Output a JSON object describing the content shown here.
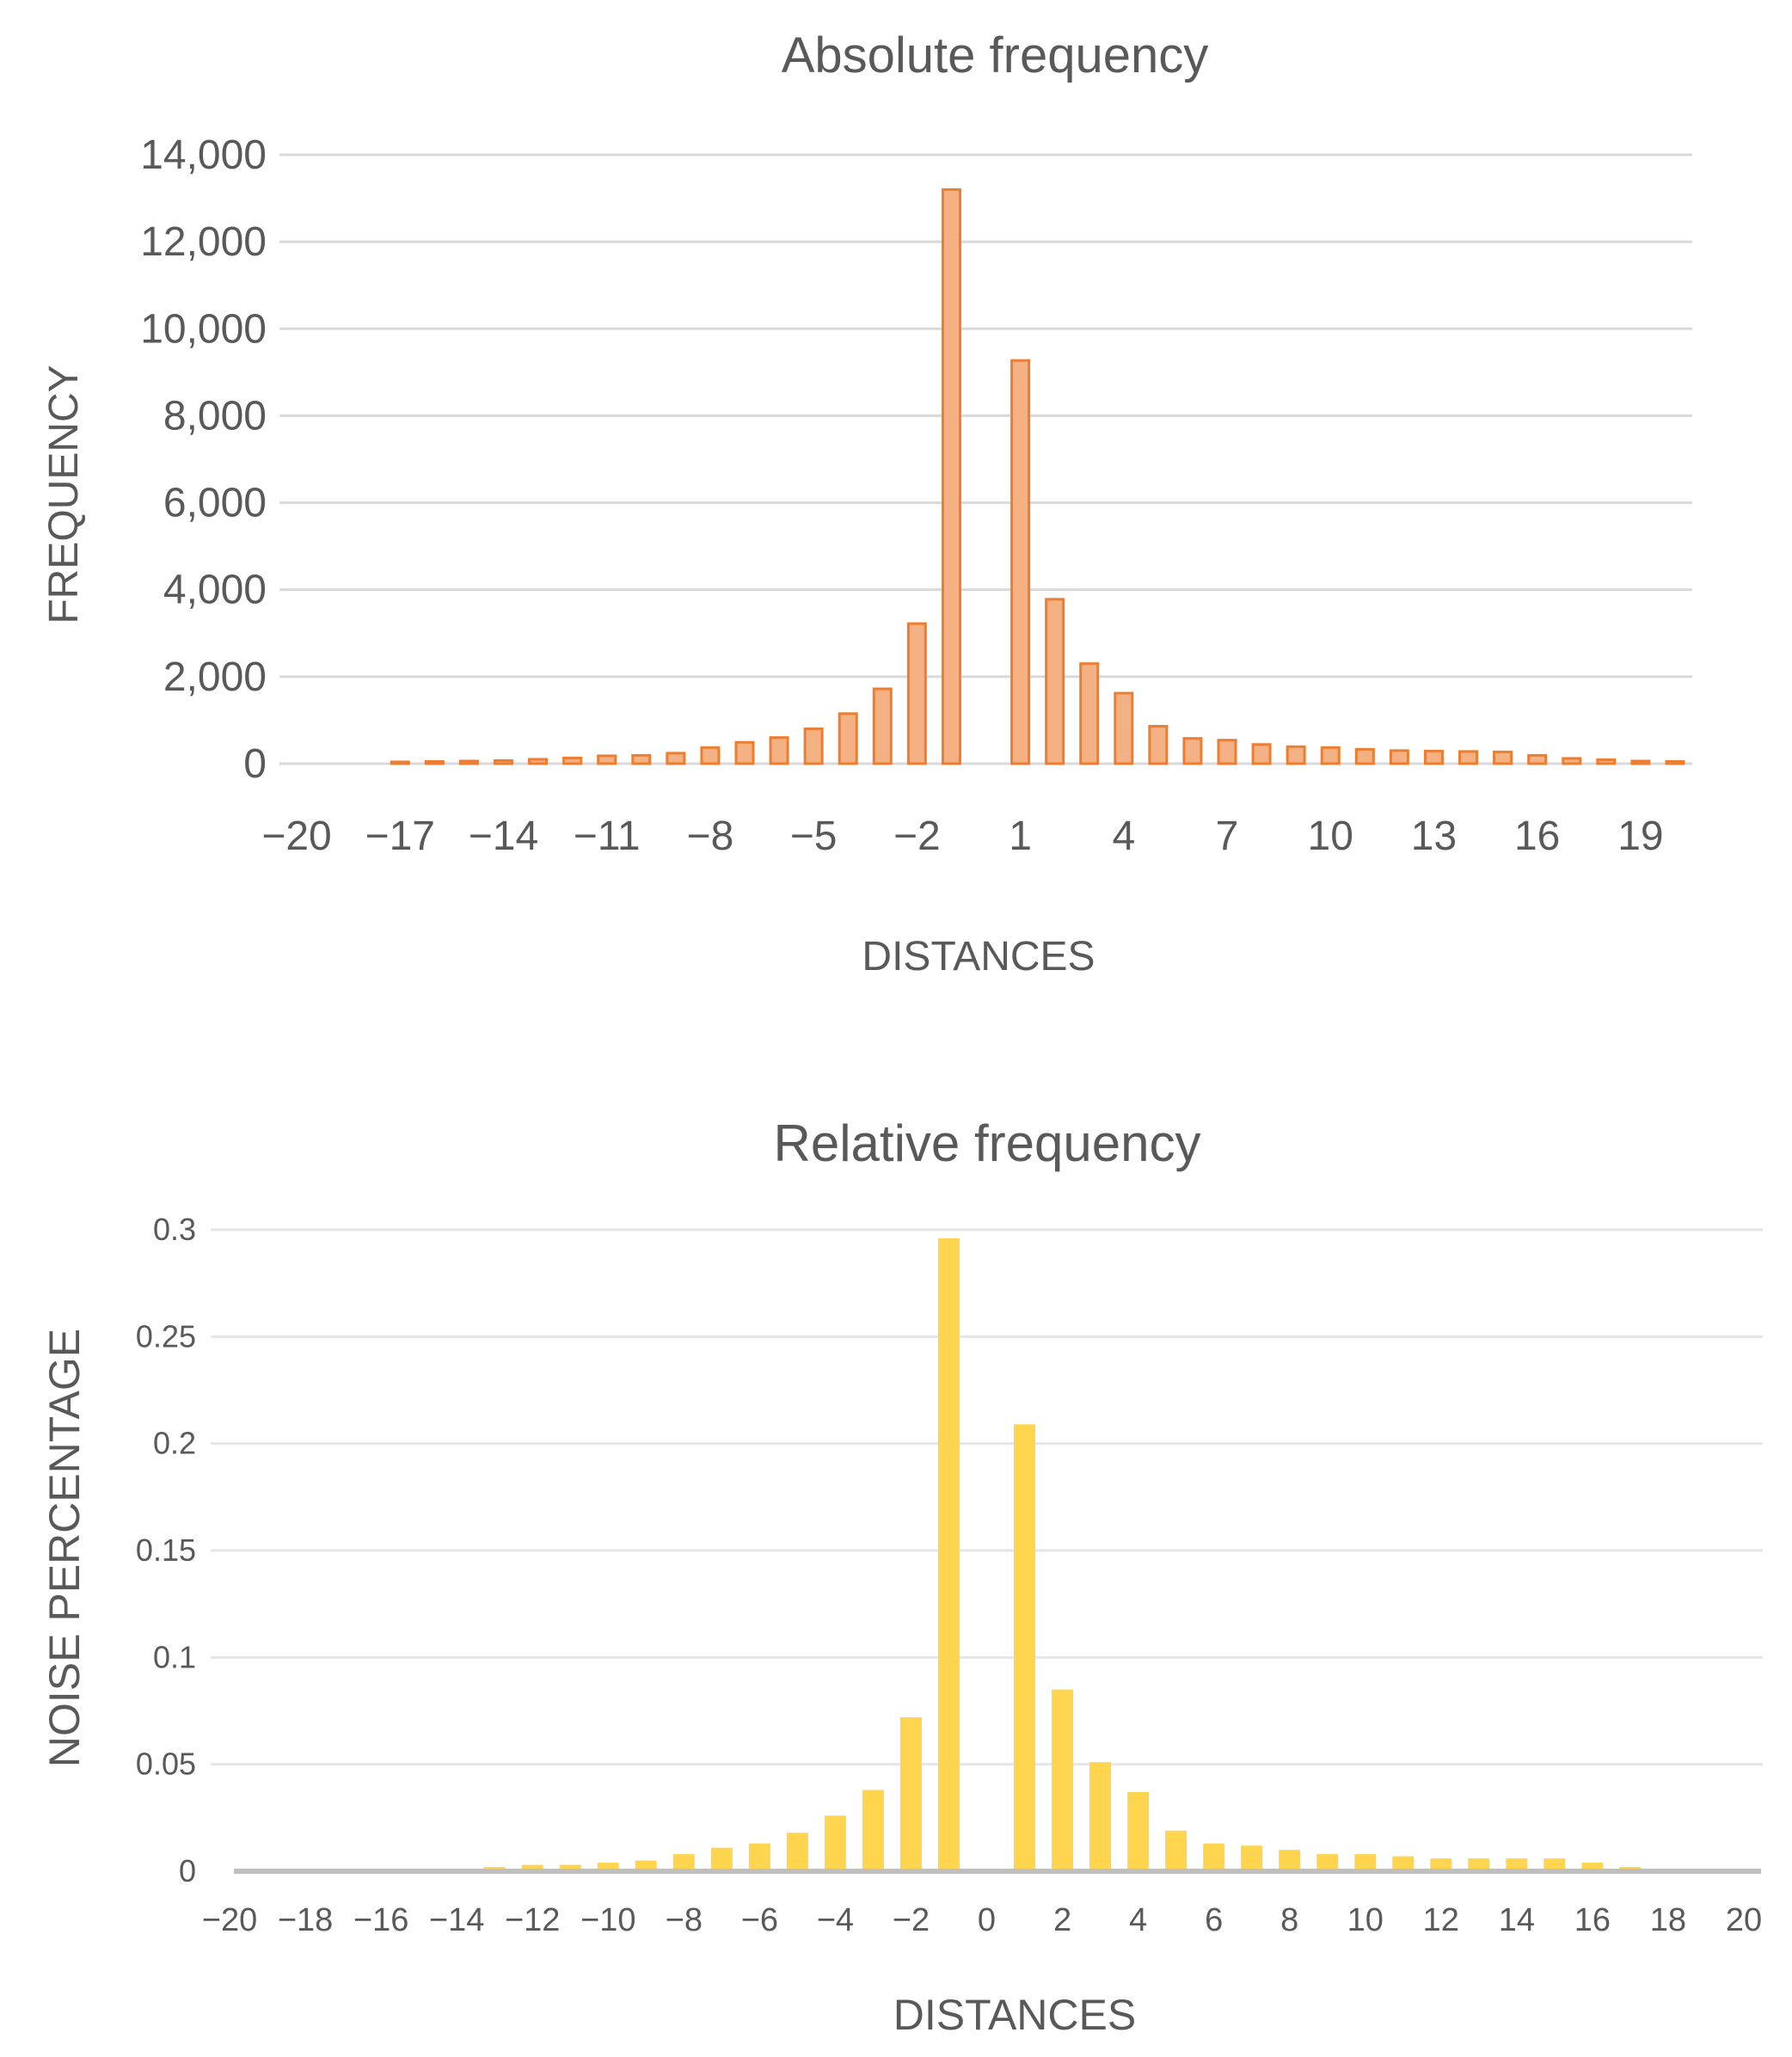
{
  "chart_data": [
    {
      "type": "bar",
      "title": "Absolute frequency",
      "xlabel": "DISTANCES",
      "ylabel": "FREQUENCY",
      "ylim": [
        0,
        14000
      ],
      "yticks": [
        "0",
        "2,000",
        "4,000",
        "6,000",
        "8,000",
        "10,000",
        "12,000",
        "14,000"
      ],
      "yticks_values": [
        0,
        2000,
        4000,
        6000,
        8000,
        10000,
        12000,
        14000
      ],
      "xticks": [
        "−20",
        "−17",
        "−14",
        "−11",
        "−8",
        "−5",
        "−2",
        "1",
        "4",
        "7",
        "10",
        "13",
        "16",
        "19"
      ],
      "xticks_values": [
        -20,
        -17,
        -14,
        -11,
        -8,
        -5,
        -2,
        1,
        4,
        7,
        10,
        13,
        16,
        19
      ],
      "color": "#F4B183",
      "edge_color": "#ED7D31",
      "grid": true,
      "x": [
        -20,
        -19,
        -18,
        -17,
        -16,
        -15,
        -14,
        -13,
        -12,
        -11,
        -10,
        -9,
        -8,
        -7,
        -6,
        -5,
        -4,
        -3,
        -2,
        -1,
        0,
        1,
        2,
        3,
        4,
        5,
        6,
        7,
        8,
        9,
        10,
        11,
        12,
        13,
        14,
        15,
        16,
        17,
        18,
        19,
        20
      ],
      "values": [
        0,
        0,
        0,
        40,
        50,
        60,
        70,
        100,
        130,
        180,
        190,
        240,
        370,
        490,
        600,
        800,
        1150,
        1720,
        3220,
        13200,
        0,
        9270,
        3780,
        2300,
        1620,
        860,
        580,
        540,
        440,
        390,
        370,
        330,
        300,
        290,
        280,
        270,
        190,
        120,
        90,
        60,
        50
      ]
    },
    {
      "type": "bar",
      "title": "Relative frequency",
      "xlabel": "DISTANCES",
      "ylabel": "NOISE PERCENTAGE",
      "ylim": [
        0,
        0.3
      ],
      "yticks": [
        "0",
        "0.05",
        "0.1",
        "0.15",
        "0.2",
        "0.25",
        "0.3"
      ],
      "yticks_values": [
        0,
        0.05,
        0.1,
        0.15,
        0.2,
        0.25,
        0.3
      ],
      "xticks": [
        "−20",
        "−18",
        "−16",
        "−14",
        "−12",
        "−10",
        "−8",
        "−6",
        "−4",
        "−2",
        "0",
        "2",
        "4",
        "6",
        "8",
        "10",
        "12",
        "14",
        "16",
        "18",
        "20"
      ],
      "xticks_values": [
        -20,
        -18,
        -16,
        -14,
        -12,
        -10,
        -8,
        -6,
        -4,
        -2,
        0,
        2,
        4,
        6,
        8,
        10,
        12,
        14,
        16,
        18,
        20
      ],
      "color": "#FFD54F",
      "grid": true,
      "x": [
        -20,
        -19,
        -18,
        -17,
        -16,
        -15,
        -14,
        -13,
        -12,
        -11,
        -10,
        -9,
        -8,
        -7,
        -6,
        -5,
        -4,
        -3,
        -2,
        -1,
        0,
        1,
        2,
        3,
        4,
        5,
        6,
        7,
        8,
        9,
        10,
        11,
        12,
        13,
        14,
        15,
        16,
        17,
        18,
        19,
        20
      ],
      "values": [
        0,
        0,
        0,
        0,
        0,
        0,
        0,
        0.002,
        0.003,
        0.003,
        0.004,
        0.005,
        0.008,
        0.011,
        0.013,
        0.018,
        0.026,
        0.038,
        0.072,
        0.296,
        0,
        0.209,
        0.085,
        0.051,
        0.037,
        0.019,
        0.013,
        0.012,
        0.01,
        0.008,
        0.008,
        0.007,
        0.006,
        0.006,
        0.006,
        0.006,
        0.004,
        0.002,
        0,
        0,
        0
      ]
    }
  ]
}
